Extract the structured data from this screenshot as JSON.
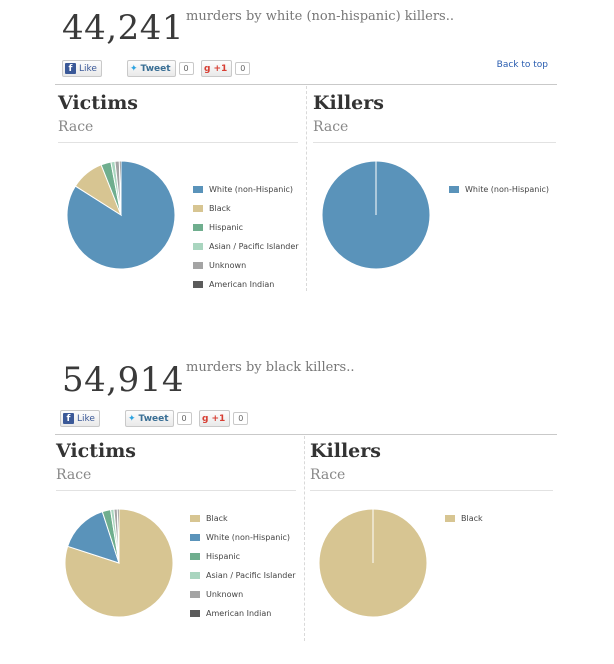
{
  "colors": {
    "white": "#5a93ba",
    "black": "#d7c592",
    "hispanic": "#6fae8e",
    "asian": "#a9d5bf",
    "unknown": "#a4a4a4",
    "american_indian": "#5b5b5b"
  },
  "social": {
    "fb_logo": "f",
    "like_label": "Like",
    "tweet_label": "Tweet",
    "tweet_count": "0",
    "gplus_label": "+1",
    "gplus_count": "0",
    "back_to_top": "Back to top"
  },
  "sections": [
    {
      "count": "44,241",
      "subtitle": "murders by white (non-hispanic) killers..",
      "victims_title": "Victims",
      "victims_sub": "Race",
      "killers_title": "Killers",
      "killers_sub": "Race"
    },
    {
      "count": "54,914",
      "subtitle": "murders by black killers..",
      "victims_title": "Victims",
      "victims_sub": "Race",
      "killers_title": "Killers",
      "killers_sub": "Race"
    }
  ],
  "chart_data": [
    {
      "type": "pie",
      "title": "Victims",
      "subtitle": "Race",
      "slices": [
        {
          "label": "White (non-Hispanic)",
          "value": 84,
          "color": "#5a93ba"
        },
        {
          "label": "Black",
          "value": 10,
          "color": "#d7c592"
        },
        {
          "label": "Hispanic",
          "value": 3,
          "color": "#6fae8e"
        },
        {
          "label": "Asian / Pacific Islander",
          "value": 1.2,
          "color": "#a9d5bf"
        },
        {
          "label": "Unknown",
          "value": 1.3,
          "color": "#a4a4a4"
        },
        {
          "label": "American Indian",
          "value": 0.5,
          "color": "#5b5b5b"
        }
      ]
    },
    {
      "type": "pie",
      "title": "Killers",
      "subtitle": "Race",
      "slices": [
        {
          "label": "White (non-Hispanic)",
          "value": 100,
          "color": "#5a93ba"
        }
      ]
    },
    {
      "type": "pie",
      "title": "Victims",
      "subtitle": "Race",
      "slices": [
        {
          "label": "Black",
          "value": 80,
          "color": "#d7c592"
        },
        {
          "label": "White (non-Hispanic)",
          "value": 15,
          "color": "#5a93ba"
        },
        {
          "label": "Hispanic",
          "value": 2.5,
          "color": "#6fae8e"
        },
        {
          "label": "Asian / Pacific Islander",
          "value": 1.0,
          "color": "#a9d5bf"
        },
        {
          "label": "Unknown",
          "value": 1.0,
          "color": "#a4a4a4"
        },
        {
          "label": "American Indian",
          "value": 0.5,
          "color": "#5b5b5b"
        }
      ]
    },
    {
      "type": "pie",
      "title": "Killers",
      "subtitle": "Race",
      "slices": [
        {
          "label": "Black",
          "value": 100,
          "color": "#d7c592"
        }
      ]
    }
  ]
}
